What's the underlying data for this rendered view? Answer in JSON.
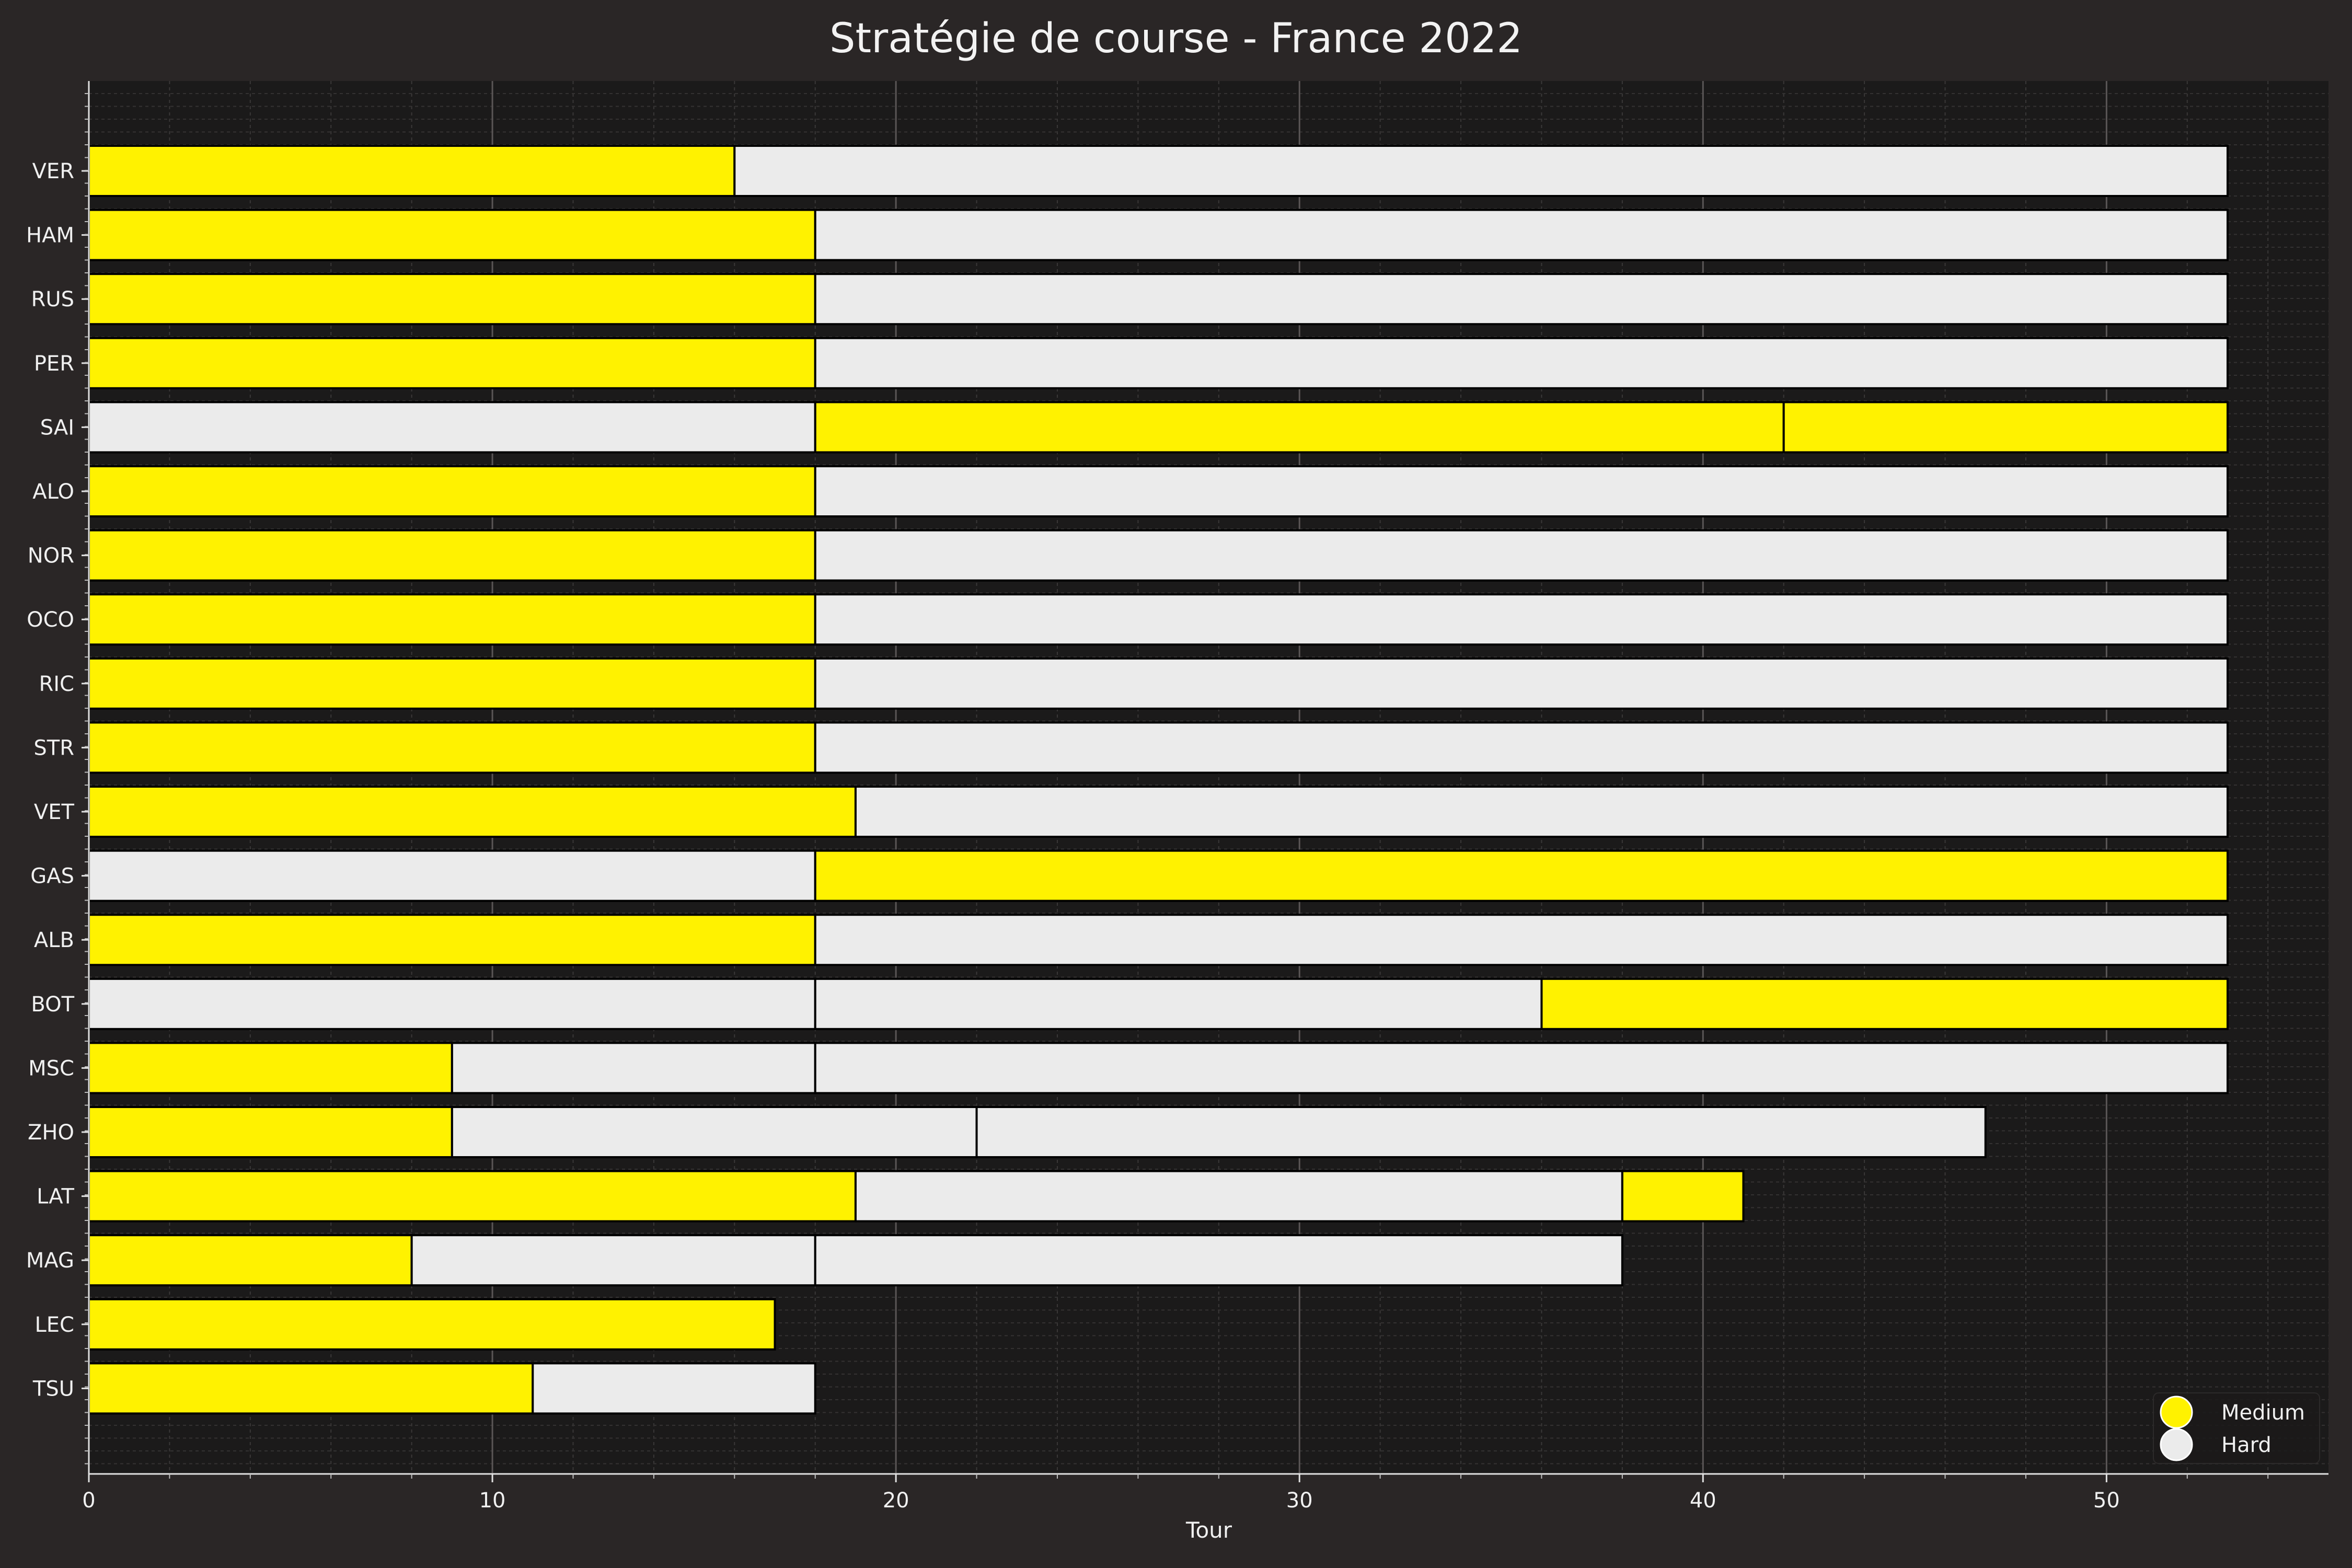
{
  "chart_data": {
    "type": "bar",
    "orientation": "horizontal",
    "stacked": true,
    "title": "Stratégie de course - France 2022",
    "xlabel": "Tour",
    "ylabel": "",
    "xlim": [
      0,
      55.5
    ],
    "xticks": [
      0,
      10,
      20,
      30,
      40,
      50
    ],
    "grid": true,
    "legend_position": "bottom-right",
    "compound_colors": {
      "Medium": "#fff200",
      "Hard": "#ebebeb"
    },
    "legend": [
      {
        "label": "Medium",
        "compound": "Medium"
      },
      {
        "label": "Hard",
        "compound": "Hard"
      }
    ],
    "drivers": [
      {
        "driver": "VER",
        "stints": [
          {
            "compound": "Medium",
            "start": 0,
            "end": 16
          },
          {
            "compound": "Hard",
            "start": 16,
            "end": 53
          }
        ]
      },
      {
        "driver": "HAM",
        "stints": [
          {
            "compound": "Medium",
            "start": 0,
            "end": 18
          },
          {
            "compound": "Hard",
            "start": 18,
            "end": 53
          }
        ]
      },
      {
        "driver": "RUS",
        "stints": [
          {
            "compound": "Medium",
            "start": 0,
            "end": 18
          },
          {
            "compound": "Hard",
            "start": 18,
            "end": 53
          }
        ]
      },
      {
        "driver": "PER",
        "stints": [
          {
            "compound": "Medium",
            "start": 0,
            "end": 18
          },
          {
            "compound": "Hard",
            "start": 18,
            "end": 53
          }
        ]
      },
      {
        "driver": "SAI",
        "stints": [
          {
            "compound": "Hard",
            "start": 0,
            "end": 18
          },
          {
            "compound": "Medium",
            "start": 18,
            "end": 42
          },
          {
            "compound": "Medium",
            "start": 42,
            "end": 53
          }
        ]
      },
      {
        "driver": "ALO",
        "stints": [
          {
            "compound": "Medium",
            "start": 0,
            "end": 18
          },
          {
            "compound": "Hard",
            "start": 18,
            "end": 53
          }
        ]
      },
      {
        "driver": "NOR",
        "stints": [
          {
            "compound": "Medium",
            "start": 0,
            "end": 18
          },
          {
            "compound": "Hard",
            "start": 18,
            "end": 53
          }
        ]
      },
      {
        "driver": "OCO",
        "stints": [
          {
            "compound": "Medium",
            "start": 0,
            "end": 18
          },
          {
            "compound": "Hard",
            "start": 18,
            "end": 53
          }
        ]
      },
      {
        "driver": "RIC",
        "stints": [
          {
            "compound": "Medium",
            "start": 0,
            "end": 18
          },
          {
            "compound": "Hard",
            "start": 18,
            "end": 53
          }
        ]
      },
      {
        "driver": "STR",
        "stints": [
          {
            "compound": "Medium",
            "start": 0,
            "end": 18
          },
          {
            "compound": "Hard",
            "start": 18,
            "end": 53
          }
        ]
      },
      {
        "driver": "VET",
        "stints": [
          {
            "compound": "Medium",
            "start": 0,
            "end": 19
          },
          {
            "compound": "Hard",
            "start": 19,
            "end": 53
          }
        ]
      },
      {
        "driver": "GAS",
        "stints": [
          {
            "compound": "Hard",
            "start": 0,
            "end": 18
          },
          {
            "compound": "Medium",
            "start": 18,
            "end": 53
          }
        ]
      },
      {
        "driver": "ALB",
        "stints": [
          {
            "compound": "Medium",
            "start": 0,
            "end": 18
          },
          {
            "compound": "Hard",
            "start": 18,
            "end": 53
          }
        ]
      },
      {
        "driver": "BOT",
        "stints": [
          {
            "compound": "Hard",
            "start": 0,
            "end": 18
          },
          {
            "compound": "Hard",
            "start": 18,
            "end": 36
          },
          {
            "compound": "Medium",
            "start": 36,
            "end": 53
          }
        ]
      },
      {
        "driver": "MSC",
        "stints": [
          {
            "compound": "Medium",
            "start": 0,
            "end": 9
          },
          {
            "compound": "Hard",
            "start": 9,
            "end": 18
          },
          {
            "compound": "Hard",
            "start": 18,
            "end": 53
          }
        ]
      },
      {
        "driver": "ZHO",
        "stints": [
          {
            "compound": "Medium",
            "start": 0,
            "end": 9
          },
          {
            "compound": "Hard",
            "start": 9,
            "end": 22
          },
          {
            "compound": "Hard",
            "start": 22,
            "end": 47
          }
        ]
      },
      {
        "driver": "LAT",
        "stints": [
          {
            "compound": "Medium",
            "start": 0,
            "end": 19
          },
          {
            "compound": "Hard",
            "start": 19,
            "end": 38
          },
          {
            "compound": "Medium",
            "start": 38,
            "end": 41
          }
        ]
      },
      {
        "driver": "MAG",
        "stints": [
          {
            "compound": "Medium",
            "start": 0,
            "end": 8
          },
          {
            "compound": "Hard",
            "start": 8,
            "end": 18
          },
          {
            "compound": "Hard",
            "start": 18,
            "end": 38
          }
        ]
      },
      {
        "driver": "LEC",
        "stints": [
          {
            "compound": "Medium",
            "start": 0,
            "end": 17
          }
        ]
      },
      {
        "driver": "TSU",
        "stints": [
          {
            "compound": "Medium",
            "start": 0,
            "end": 11
          },
          {
            "compound": "Hard",
            "start": 11,
            "end": 18
          }
        ]
      }
    ]
  }
}
